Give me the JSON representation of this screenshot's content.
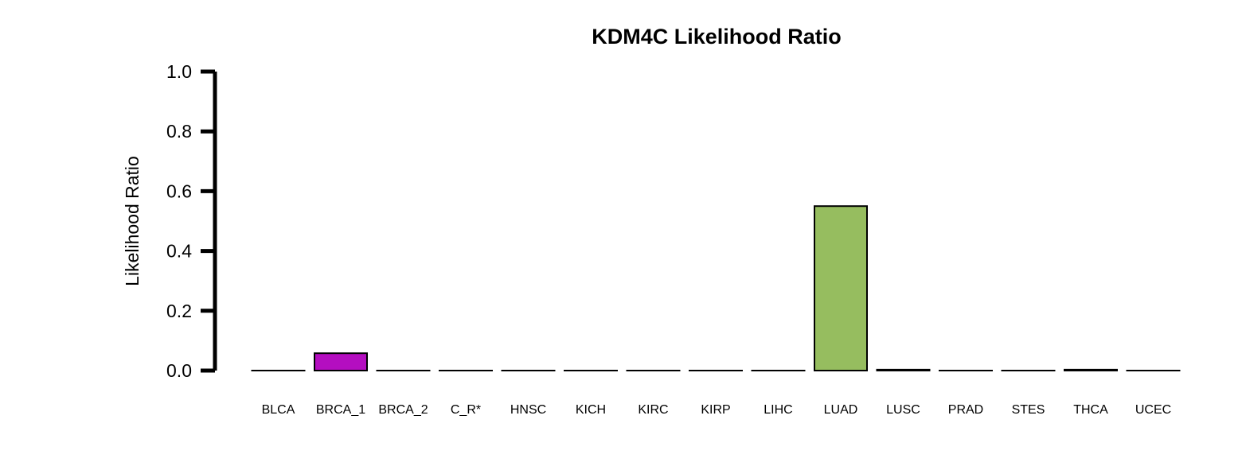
{
  "chart_data": {
    "type": "bar",
    "title": "KDM4C Likelihood Ratio",
    "xlabel": "",
    "ylabel": "Likelihood Ratio",
    "ylim": [
      0,
      1
    ],
    "yticks": [
      "0.0",
      "0.2",
      "0.4",
      "0.6",
      "0.8",
      "1.0"
    ],
    "grid": false,
    "categories": [
      "BLCA",
      "BRCA_1",
      "BRCA_2",
      "C_R*",
      "HNSC",
      "KICH",
      "KIRC",
      "KIRP",
      "LIHC",
      "LUAD",
      "LUSC",
      "PRAD",
      "STES",
      "THCA",
      "UCEC"
    ],
    "values": [
      0.0,
      0.058,
      0.0,
      0.0,
      0.0,
      0.0,
      0.0,
      0.0,
      0.0,
      0.55,
      0.003,
      0.0,
      0.0,
      0.003,
      0.0
    ],
    "colors": [
      "#ffffff",
      "#b40ec0",
      "#ffffff",
      "#ffffff",
      "#ffffff",
      "#ffffff",
      "#ffffff",
      "#ffffff",
      "#ffffff",
      "#96bd5f",
      "#ffffff",
      "#ffffff",
      "#ffffff",
      "#ffffff",
      "#ffffff"
    ]
  }
}
